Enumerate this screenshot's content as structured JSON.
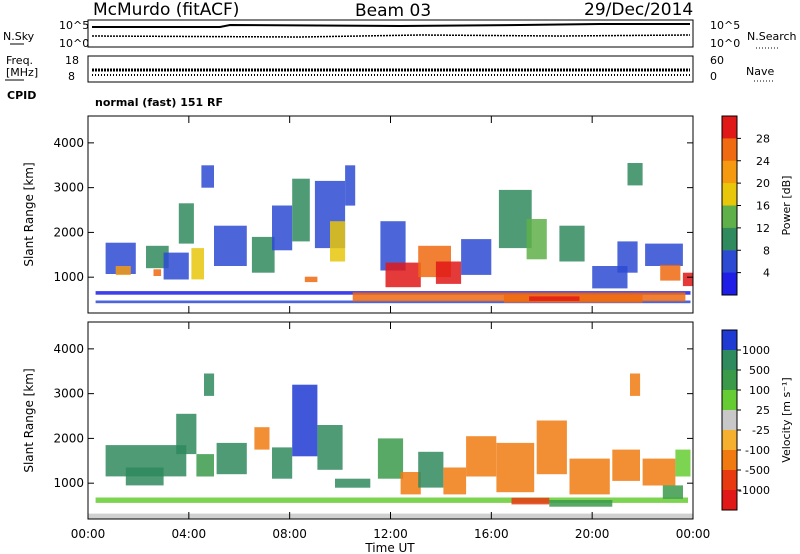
{
  "header": {
    "station": "McMurdo (fitACF)",
    "beam": "Beam 03",
    "date": "29/Dec/2014"
  },
  "strips": {
    "nsky": {
      "label": "N.Sky",
      "tick_top": "10^5",
      "tick_bottom": "10^0"
    },
    "nsearch": {
      "label": "N.Search",
      "tick_top": "10^5",
      "tick_bottom": "10^0"
    },
    "freq": {
      "label_top": "Freq.",
      "label_bottom": "[MHz]",
      "tick_top": "18",
      "tick_bottom": "8"
    },
    "nave": {
      "label": "Nave",
      "tick_top": "60",
      "tick_bottom": "0"
    },
    "cpid": {
      "label": "CPID",
      "value": "normal (fast) 151 RF"
    }
  },
  "chart_data": [
    {
      "type": "heatmap",
      "name": "power",
      "ylabel": "Slant Range [km]",
      "ylim": [
        200,
        4600
      ],
      "yticks": [
        "1000",
        "2000",
        "3000",
        "4000"
      ],
      "colorbar": {
        "label": "Power [dB]",
        "ticks": [
          "4",
          "8",
          "12",
          "16",
          "20",
          "24",
          "28"
        ],
        "colors": [
          "#1e1ee6",
          "#2d4bd2",
          "#2f8a5e",
          "#5fb04a",
          "#e8c60a",
          "#f59a10",
          "#ef6a10",
          "#e01818"
        ]
      },
      "patches": [
        {
          "t": 0.3,
          "r": 650,
          "w": 23.6,
          "h": 80,
          "c": 0
        },
        {
          "t": 0.3,
          "r": 450,
          "w": 23.6,
          "h": 60,
          "c": 1
        },
        {
          "t": 10.5,
          "r": 560,
          "w": 13.2,
          "h": 200,
          "c": 6
        },
        {
          "t": 16.5,
          "r": 520,
          "w": 5.5,
          "h": 180,
          "c": 6
        },
        {
          "t": 17.5,
          "r": 520,
          "w": 2.0,
          "h": 100,
          "c": 7
        },
        {
          "t": 0.7,
          "r": 1420,
          "w": 1.2,
          "h": 700,
          "c": 1
        },
        {
          "t": 1.1,
          "r": 1150,
          "w": 0.6,
          "h": 200,
          "c": 5
        },
        {
          "t": 2.3,
          "r": 1450,
          "w": 0.9,
          "h": 500,
          "c": 2
        },
        {
          "t": 2.6,
          "r": 1100,
          "w": 0.3,
          "h": 150,
          "c": 6
        },
        {
          "t": 3.0,
          "r": 1250,
          "w": 1.0,
          "h": 600,
          "c": 1
        },
        {
          "t": 3.6,
          "r": 2200,
          "w": 0.6,
          "h": 900,
          "c": 2
        },
        {
          "t": 4.1,
          "r": 1300,
          "w": 0.5,
          "h": 700,
          "c": 4
        },
        {
          "t": 5.0,
          "r": 1700,
          "w": 1.3,
          "h": 900,
          "c": 1
        },
        {
          "t": 6.5,
          "r": 1500,
          "w": 0.9,
          "h": 800,
          "c": 2
        },
        {
          "t": 7.3,
          "r": 2100,
          "w": 0.8,
          "h": 1000,
          "c": 1
        },
        {
          "t": 8.1,
          "r": 2500,
          "w": 0.7,
          "h": 1400,
          "c": 2
        },
        {
          "t": 9.0,
          "r": 2400,
          "w": 1.2,
          "h": 1500,
          "c": 1
        },
        {
          "t": 9.6,
          "r": 1800,
          "w": 0.6,
          "h": 900,
          "c": 4
        },
        {
          "t": 8.6,
          "r": 950,
          "w": 0.5,
          "h": 120,
          "c": 6
        },
        {
          "t": 11.6,
          "r": 1700,
          "w": 1.0,
          "h": 1100,
          "c": 1
        },
        {
          "t": 11.8,
          "r": 1050,
          "w": 1.4,
          "h": 550,
          "c": 7
        },
        {
          "t": 13.1,
          "r": 1350,
          "w": 1.3,
          "h": 700,
          "c": 6
        },
        {
          "t": 13.8,
          "r": 1100,
          "w": 1.0,
          "h": 500,
          "c": 7
        },
        {
          "t": 14.8,
          "r": 1450,
          "w": 1.2,
          "h": 800,
          "c": 1
        },
        {
          "t": 16.3,
          "r": 2300,
          "w": 1.3,
          "h": 1300,
          "c": 2
        },
        {
          "t": 17.4,
          "r": 1850,
          "w": 0.8,
          "h": 900,
          "c": 3
        },
        {
          "t": 18.7,
          "r": 1750,
          "w": 1.0,
          "h": 800,
          "c": 2
        },
        {
          "t": 20.0,
          "r": 1000,
          "w": 1.4,
          "h": 500,
          "c": 1
        },
        {
          "t": 21.0,
          "r": 1450,
          "w": 0.8,
          "h": 700,
          "c": 1
        },
        {
          "t": 22.1,
          "r": 1500,
          "w": 1.5,
          "h": 500,
          "c": 1
        },
        {
          "t": 22.7,
          "r": 1100,
          "w": 0.8,
          "h": 350,
          "c": 6
        },
        {
          "t": 23.6,
          "r": 950,
          "w": 0.4,
          "h": 300,
          "c": 7
        },
        {
          "t": 21.4,
          "r": 3300,
          "w": 0.6,
          "h": 500,
          "c": 2
        },
        {
          "t": 4.5,
          "r": 3250,
          "w": 0.5,
          "h": 500,
          "c": 1
        },
        {
          "t": 10.2,
          "r": 3050,
          "w": 0.4,
          "h": 900,
          "c": 1
        }
      ]
    },
    {
      "type": "heatmap",
      "name": "velocity",
      "xlabel": "Time UT",
      "ylabel": "Slant Range [km]",
      "ylim": [
        200,
        4600
      ],
      "xlim": [
        0,
        24
      ],
      "xticks": [
        "00:00",
        "04:00",
        "08:00",
        "12:00",
        "16:00",
        "20:00",
        "00:00"
      ],
      "yticks": [
        "1000",
        "2000",
        "3000",
        "4000"
      ],
      "colorbar": {
        "label": "Velocity [m s⁻¹]",
        "ticks": [
          "1000",
          "500",
          "100",
          "25",
          "-25",
          "-100",
          "-500",
          "-1000"
        ],
        "colors": [
          "#1e3ad2",
          "#2f8a5e",
          "#3a9a4a",
          "#66cc33",
          "#c8c8c8",
          "#f5b030",
          "#f07a10",
          "#e83a10",
          "#e01818"
        ]
      },
      "patches": [
        {
          "t": 0.0,
          "r": 260,
          "w": 24.0,
          "h": 120,
          "c": 4
        },
        {
          "t": 0.3,
          "r": 620,
          "w": 23.5,
          "h": 120,
          "c": 3
        },
        {
          "t": 0.7,
          "r": 1500,
          "w": 3.2,
          "h": 700,
          "c": 1
        },
        {
          "t": 1.5,
          "r": 1150,
          "w": 1.5,
          "h": 400,
          "c": 1
        },
        {
          "t": 3.5,
          "r": 2100,
          "w": 0.8,
          "h": 900,
          "c": 1
        },
        {
          "t": 4.3,
          "r": 1400,
          "w": 0.7,
          "h": 500,
          "c": 2
        },
        {
          "t": 5.1,
          "r": 1550,
          "w": 1.2,
          "h": 700,
          "c": 1
        },
        {
          "t": 6.6,
          "r": 2000,
          "w": 0.6,
          "h": 500,
          "c": 6
        },
        {
          "t": 7.3,
          "r": 1450,
          "w": 0.8,
          "h": 700,
          "c": 1
        },
        {
          "t": 8.1,
          "r": 2400,
          "w": 1.0,
          "h": 1600,
          "c": 0
        },
        {
          "t": 9.1,
          "r": 1800,
          "w": 1.0,
          "h": 1000,
          "c": 1
        },
        {
          "t": 9.8,
          "r": 1000,
          "w": 1.4,
          "h": 200,
          "c": 1
        },
        {
          "t": 11.5,
          "r": 1550,
          "w": 1.0,
          "h": 900,
          "c": 2
        },
        {
          "t": 12.4,
          "r": 1000,
          "w": 0.8,
          "h": 500,
          "c": 6
        },
        {
          "t": 13.1,
          "r": 1300,
          "w": 1.0,
          "h": 800,
          "c": 1
        },
        {
          "t": 14.1,
          "r": 1050,
          "w": 0.9,
          "h": 600,
          "c": 6
        },
        {
          "t": 15.0,
          "r": 1600,
          "w": 1.2,
          "h": 900,
          "c": 6
        },
        {
          "t": 16.2,
          "r": 1350,
          "w": 1.5,
          "h": 1100,
          "c": 6
        },
        {
          "t": 17.8,
          "r": 1800,
          "w": 1.2,
          "h": 1200,
          "c": 6
        },
        {
          "t": 19.1,
          "r": 1150,
          "w": 1.6,
          "h": 800,
          "c": 6
        },
        {
          "t": 20.8,
          "r": 1400,
          "w": 1.1,
          "h": 700,
          "c": 6
        },
        {
          "t": 22.0,
          "r": 1250,
          "w": 1.3,
          "h": 600,
          "c": 6
        },
        {
          "t": 23.3,
          "r": 1450,
          "w": 0.6,
          "h": 600,
          "c": 3
        },
        {
          "t": 22.8,
          "r": 800,
          "w": 0.8,
          "h": 300,
          "c": 2
        },
        {
          "t": 18.3,
          "r": 550,
          "w": 2.5,
          "h": 150,
          "c": 2
        },
        {
          "t": 16.8,
          "r": 600,
          "w": 1.5,
          "h": 150,
          "c": 7
        },
        {
          "t": 21.5,
          "r": 3200,
          "w": 0.4,
          "h": 500,
          "c": 6
        },
        {
          "t": 4.6,
          "r": 3200,
          "w": 0.4,
          "h": 500,
          "c": 1
        }
      ]
    }
  ]
}
